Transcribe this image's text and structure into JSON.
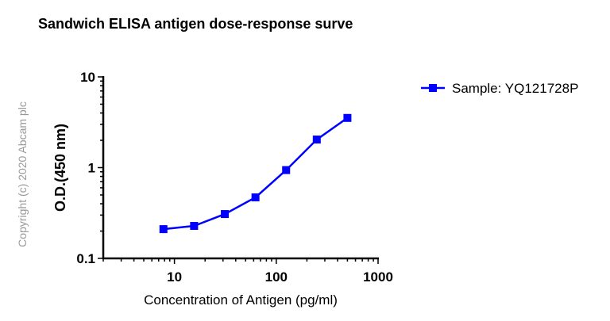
{
  "chart_data": {
    "type": "line",
    "title": "Sandwich ELISA antigen dose-response surve",
    "xlabel": "Concentration of Antigen (pg/ml)",
    "ylabel": "O.D.(450 nm)",
    "xscale": "log",
    "yscale": "log",
    "xlim": [
      2,
      1000
    ],
    "ylim": [
      0.1,
      10
    ],
    "xticks": [
      "10",
      "100",
      "1000"
    ],
    "yticks": [
      "0.1",
      "1",
      "10"
    ],
    "grid": false,
    "legend_position": "right",
    "series": [
      {
        "name": "Sample: YQ121728P",
        "color": "#0000ff",
        "marker": "square",
        "x": [
          7.8,
          15.6,
          31.25,
          62.5,
          125,
          250,
          500
        ],
        "y": [
          0.21,
          0.228,
          0.308,
          0.47,
          0.94,
          2.04,
          3.53
        ]
      }
    ]
  },
  "watermark": "Copyright (c) 2020 Abcam plc"
}
